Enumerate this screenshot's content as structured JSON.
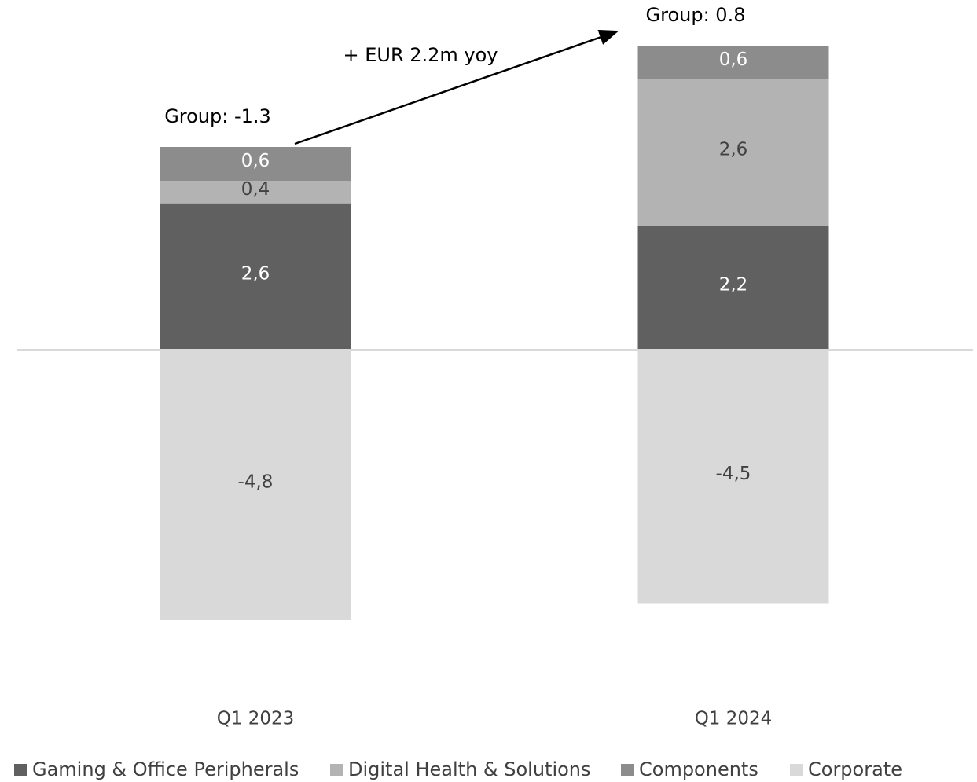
{
  "chart_data": {
    "type": "stacked-bar",
    "categories": [
      "Q1 2023",
      "Q1 2024"
    ],
    "series": [
      {
        "name": "Gaming & Office Peripherals",
        "color": "#606060",
        "values": [
          2.6,
          2.2
        ],
        "value_labels": [
          "2,6",
          "2,2"
        ]
      },
      {
        "name": "Digital Health & Solutions",
        "color": "#b3b3b3",
        "values": [
          0.4,
          2.6
        ],
        "value_labels": [
          "0,4",
          "2,6"
        ]
      },
      {
        "name": "Components",
        "color": "#8c8c8c",
        "values": [
          0.6,
          0.6
        ],
        "value_labels": [
          "0,6",
          "0,6"
        ]
      },
      {
        "name": "Corporate",
        "color": "#d9d9d9",
        "values": [
          -4.8,
          -4.5
        ],
        "value_labels": [
          "-4,8",
          "-4,5"
        ]
      }
    ],
    "group_labels": [
      "Group: -1.3",
      "Group: 0.8"
    ],
    "annotation": "+ EUR 2.2m yoy"
  }
}
